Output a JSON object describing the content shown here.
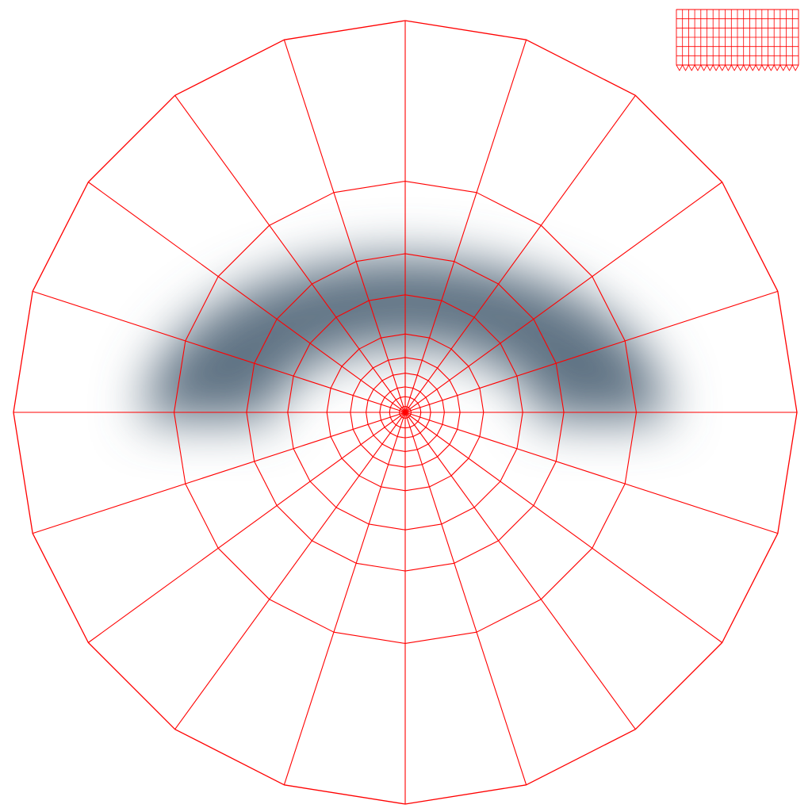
{
  "scene": {
    "background_color": "#ffffff",
    "wire_color": "#ff0000",
    "shadow_color": "#5f7283"
  },
  "polar_mesh": {
    "segments": 20,
    "rings": 9,
    "ring_fractions": [
      0.015,
      0.04,
      0.065,
      0.1,
      0.14,
      0.2,
      0.3,
      0.405,
      0.59,
      1.0
    ]
  },
  "uv_preview": {
    "columns": 20,
    "rows": 6
  }
}
